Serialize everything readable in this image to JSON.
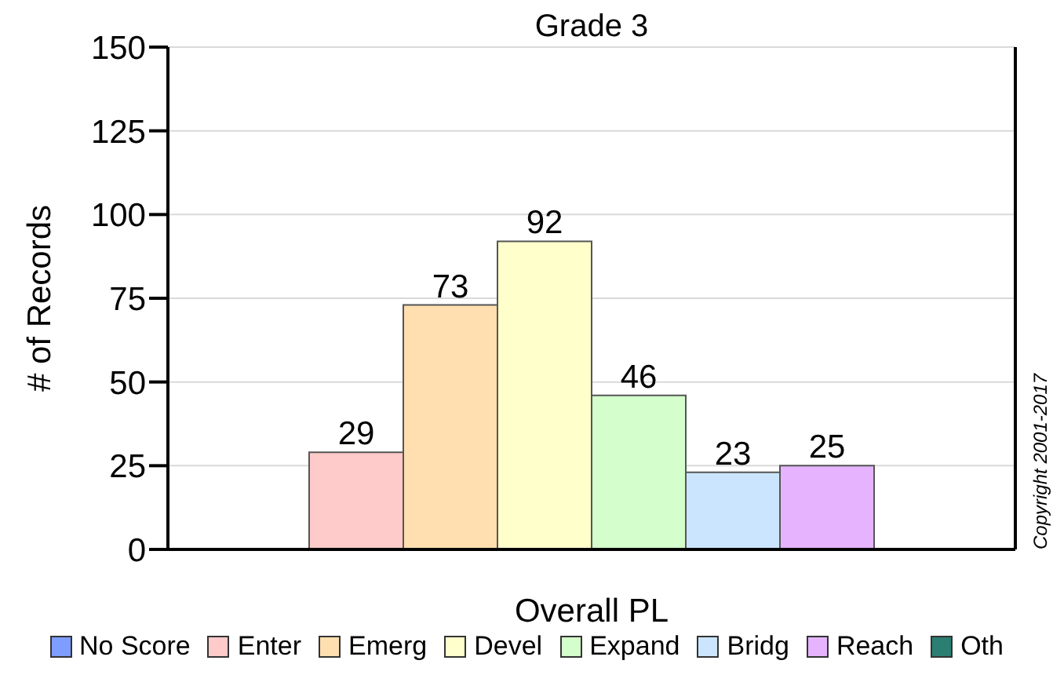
{
  "chart_data": {
    "type": "bar",
    "title": "Grade 3",
    "xlabel": "Overall PL",
    "ylabel": "# of Records",
    "categories": [
      null
    ],
    "series": [
      {
        "name": "No Score",
        "color": "#7f9cff",
        "values": [
          null
        ]
      },
      {
        "name": "Enter",
        "color": "#ffcaca",
        "values": [
          29
        ]
      },
      {
        "name": "Emerg",
        "color": "#ffdfb0",
        "values": [
          73
        ]
      },
      {
        "name": "Devel",
        "color": "#ffffcc",
        "values": [
          92
        ]
      },
      {
        "name": "Expand",
        "color": "#d4ffcc",
        "values": [
          46
        ]
      },
      {
        "name": "Bridg",
        "color": "#cce5ff",
        "values": [
          23
        ]
      },
      {
        "name": "Reach",
        "color": "#e6b4ff",
        "values": [
          25
        ]
      },
      {
        "name": "Oth",
        "color": "#2a7f72",
        "values": [
          null
        ]
      }
    ],
    "ylim": [
      0,
      150
    ],
    "yticks": [
      0,
      25,
      50,
      75,
      100,
      125,
      150
    ],
    "grid": "y",
    "legend": "bottom",
    "data_labels": true,
    "tick_labels": "y",
    "annotations": [
      "Copyright 2001-2017"
    ]
  }
}
